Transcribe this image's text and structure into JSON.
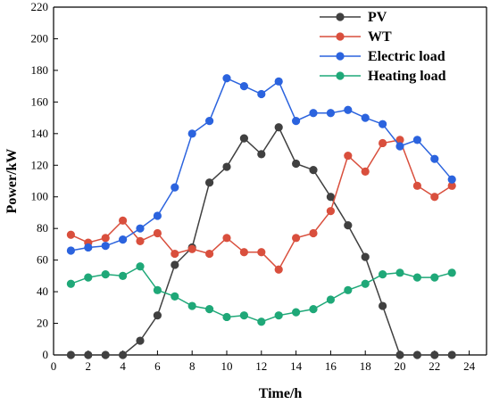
{
  "chart_data": {
    "type": "line",
    "xlabel": "Time/h",
    "ylabel": "Power/kW",
    "xlim": [
      0,
      25
    ],
    "ylim": [
      0,
      220
    ],
    "xticks": [
      0,
      2,
      4,
      6,
      8,
      10,
      12,
      14,
      16,
      18,
      20,
      22,
      24
    ],
    "yticks": [
      0,
      20,
      40,
      60,
      80,
      100,
      120,
      140,
      160,
      180,
      200,
      220
    ],
    "grid": false,
    "legend": "top-right",
    "x": [
      1,
      2,
      3,
      4,
      5,
      6,
      7,
      8,
      9,
      10,
      11,
      12,
      13,
      14,
      15,
      16,
      17,
      18,
      19,
      20,
      21,
      22,
      23
    ],
    "series": [
      {
        "name": "PV",
        "color": "#404040",
        "values": [
          0,
          0,
          0,
          0,
          9,
          25,
          57,
          68,
          109,
          119,
          137,
          127,
          144,
          121,
          117,
          100,
          82,
          62,
          31,
          0,
          0,
          0,
          0
        ]
      },
      {
        "name": "WT",
        "color": "#d94f3d",
        "values": [
          76,
          71,
          74,
          85,
          72,
          77,
          64,
          67,
          64,
          74,
          65,
          65,
          54,
          74,
          77,
          91,
          126,
          116,
          134,
          136,
          107,
          100,
          107
        ]
      },
      {
        "name": "Electric load",
        "color": "#2b63de",
        "values": [
          66,
          68,
          69,
          73,
          80,
          88,
          106,
          140,
          148,
          175,
          170,
          165,
          173,
          148,
          153,
          153,
          155,
          150,
          146,
          132,
          136,
          124,
          111
        ]
      },
      {
        "name": "Heating load",
        "color": "#1fa878",
        "values": [
          45,
          49,
          51,
          50,
          56,
          41,
          37,
          31,
          29,
          24,
          25,
          21,
          25,
          27,
          29,
          35,
          41,
          45,
          51,
          52,
          49,
          49,
          52
        ]
      }
    ]
  }
}
